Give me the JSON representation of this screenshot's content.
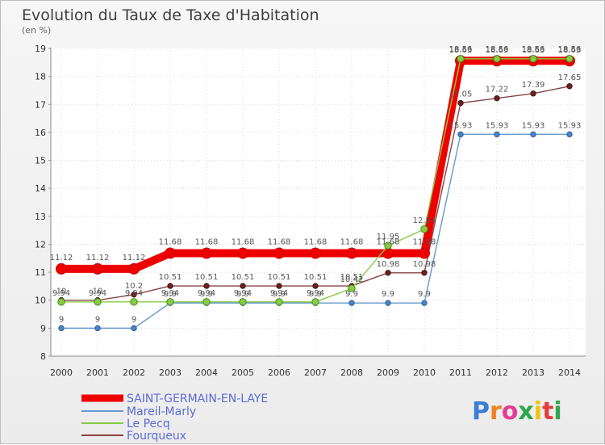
{
  "chart_data": {
    "type": "line",
    "title": "Evolution du Taux de Taxe d'Habitation",
    "unit_label": "(en %)",
    "categories": [
      "2000",
      "2001",
      "2002",
      "2003",
      "2004",
      "2005",
      "2006",
      "2007",
      "2008",
      "2009",
      "2010",
      "2011",
      "2012",
      "2013",
      "2014"
    ],
    "ylim": [
      8,
      19
    ],
    "yticks": [
      8,
      9,
      10,
      11,
      12,
      13,
      14,
      15,
      16,
      17,
      18,
      19
    ],
    "grid": true,
    "legend_position": "bottom-left",
    "series": [
      {
        "name": "SAINT-GERMAIN-EN-LAYE",
        "color": "#ee0000",
        "values": [
          11.12,
          11.12,
          11.12,
          11.68,
          11.68,
          11.68,
          11.68,
          11.68,
          11.68,
          11.68,
          11.68,
          18.56,
          18.56,
          18.56,
          18.56
        ],
        "labels": [
          "11.12",
          "11.12",
          "11.12",
          "11.68",
          "11.68",
          "11.68",
          "11.68",
          "11.68",
          "11.68",
          "11.68",
          "11.68",
          "18.56",
          "18.56",
          "18.56",
          "18.56"
        ]
      },
      {
        "name": "Mareil-Marly",
        "color": "#6699cc",
        "values": [
          9,
          9,
          9,
          9.9,
          9.9,
          9.9,
          9.9,
          9.9,
          9.9,
          9.9,
          9.9,
          15.93,
          15.93,
          15.93,
          15.93
        ],
        "labels": [
          "9",
          "9",
          "9",
          "9.9",
          "9.9",
          "9.9",
          "9.9",
          "9.9",
          "9.9",
          "9.9",
          "9.9",
          "15.93",
          "15.93",
          "15.93",
          "15.93"
        ]
      },
      {
        "name": "Le Pecq",
        "color": "#88cc44",
        "values": [
          9.94,
          9.94,
          9.94,
          9.94,
          9.94,
          9.94,
          9.94,
          9.94,
          10.42,
          11.95,
          12.54,
          18.63,
          18.63,
          18.63,
          18.63
        ],
        "labels": [
          "9.94",
          "9.94",
          "9.94",
          "9.94",
          "9.94",
          "9.94",
          "9.94",
          "9.94",
          "10.42",
          "11.95",
          "12.54",
          "18.63",
          "18.63",
          "18.63",
          "18.63"
        ]
      },
      {
        "name": "Fourqueux",
        "color": "#884444",
        "values": [
          10,
          10,
          10.2,
          10.51,
          10.51,
          10.51,
          10.51,
          10.51,
          10.51,
          10.98,
          10.98,
          17.05,
          17.22,
          17.39,
          17.65
        ],
        "labels": [
          "10",
          "10",
          "10.2",
          "10.51",
          "10.51",
          "10.51",
          "10.51",
          "10.51",
          "10.51",
          "10.98",
          "10.98",
          "17.05",
          "17.22",
          "17.39",
          "17.65"
        ]
      }
    ]
  },
  "logo": {
    "text": "Proxiti"
  }
}
